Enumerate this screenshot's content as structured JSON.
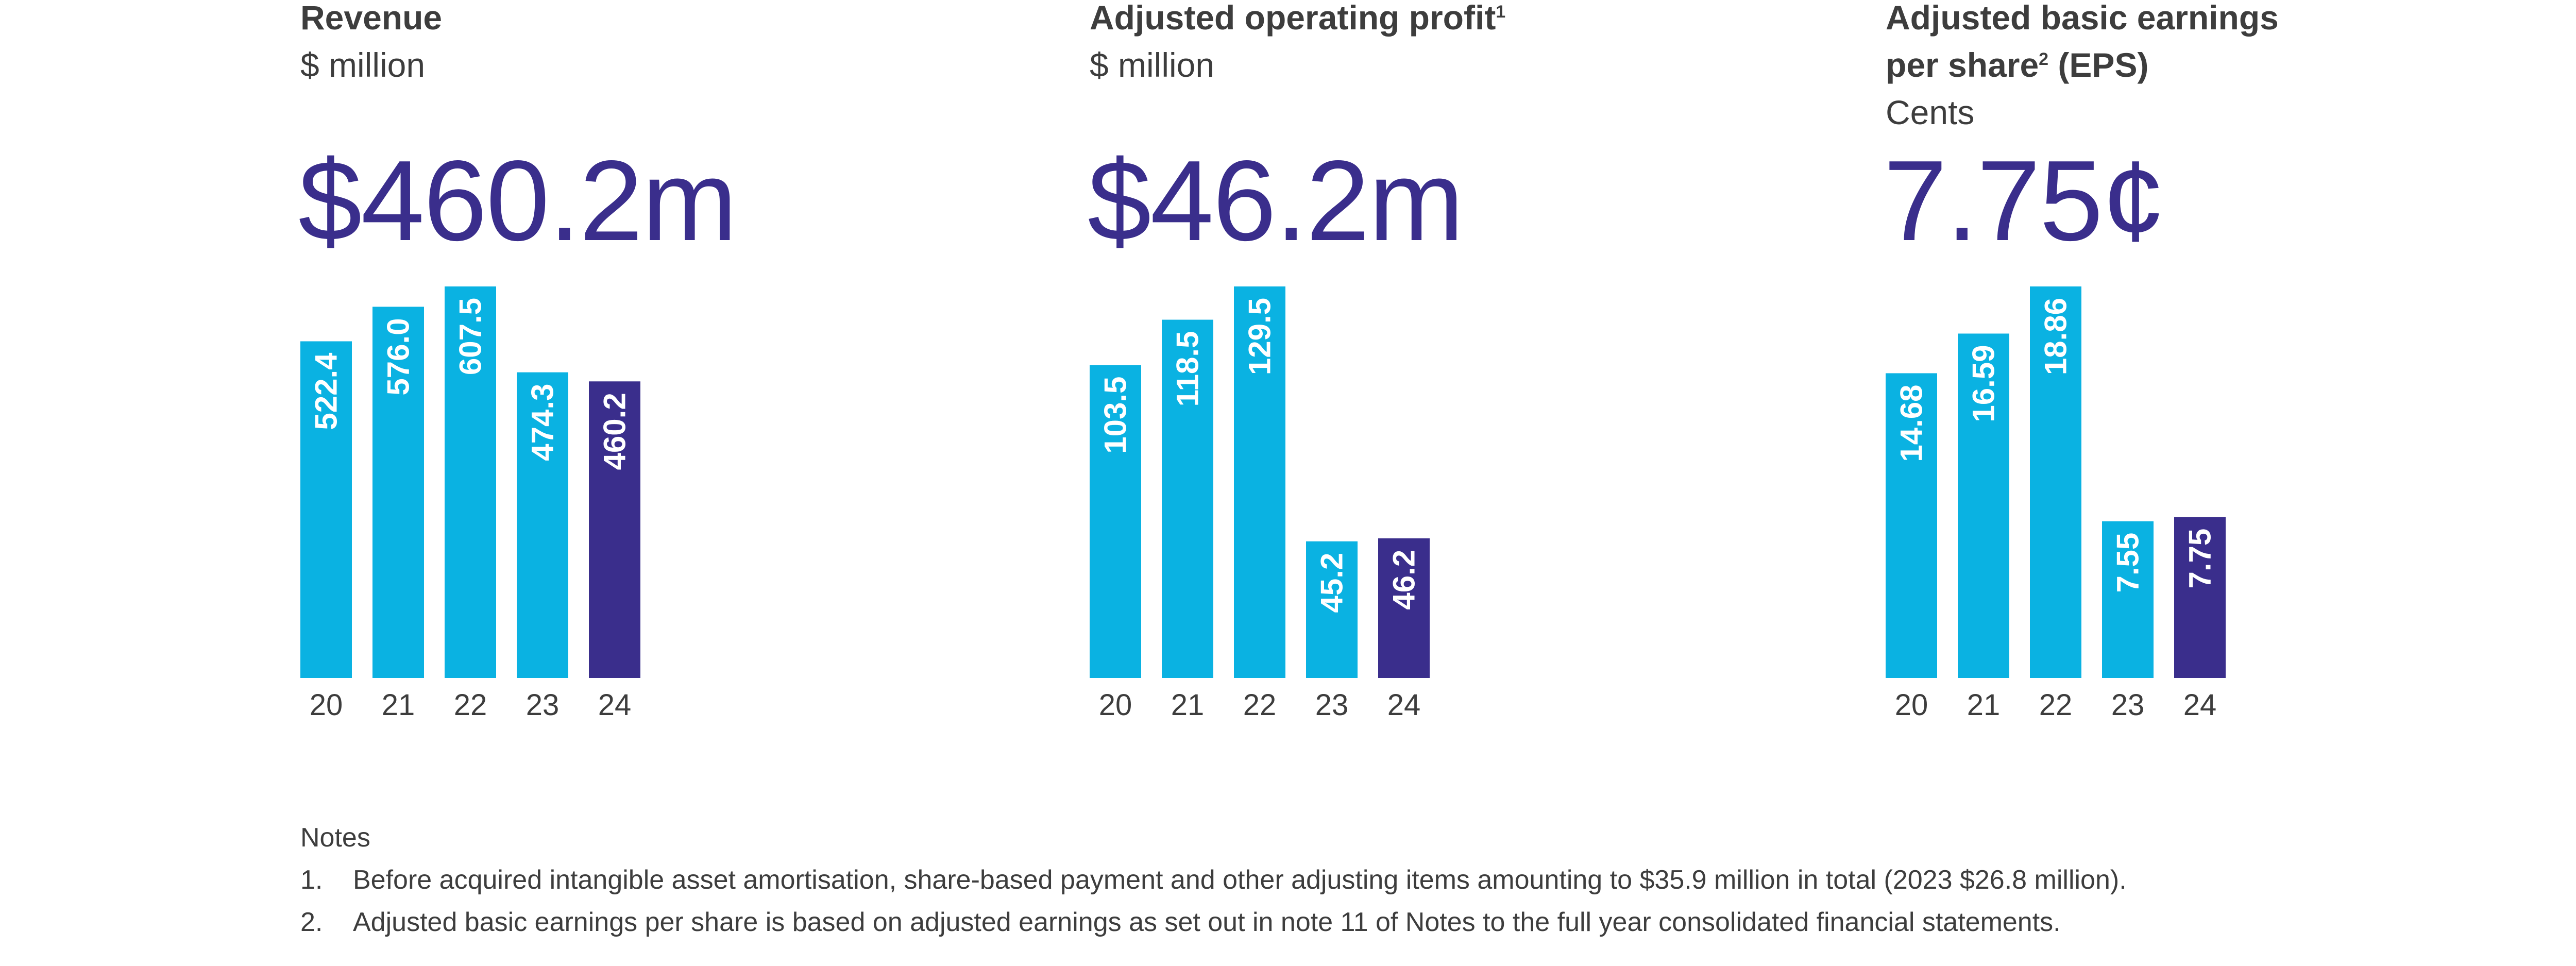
{
  "colors": {
    "bar": "#0ab2e2",
    "highlight_bar": "#3a2e8c",
    "headline": "#3a2e8c",
    "text": "#3d3d3d",
    "bar_label": "#ffffff"
  },
  "panels": [
    {
      "title": "Revenue",
      "title_sup": "",
      "title_line2": "",
      "title_line2_sup": "",
      "title_line2_rest": "",
      "unit": "$ million",
      "headline": "$460.2m"
    },
    {
      "title": "Adjusted operating profit",
      "title_sup": "1",
      "title_line2": "",
      "title_line2_sup": "",
      "title_line2_rest": "",
      "unit": "$ million",
      "headline": "$46.2m"
    },
    {
      "title": "Adjusted basic earnings",
      "title_sup": "",
      "title_line2": "per share",
      "title_line2_sup": "2",
      "title_line2_rest": " (EPS)",
      "unit": "Cents",
      "headline": "7.75¢"
    }
  ],
  "chart_data": [
    {
      "type": "bar",
      "categories": [
        "20",
        "21",
        "22",
        "23",
        "24"
      ],
      "values": [
        522.4,
        576.0,
        607.5,
        474.3,
        460.2
      ],
      "labels": [
        "522.4",
        "576.0",
        "607.5",
        "474.3",
        "460.2"
      ],
      "highlight_index": 4,
      "title": "Revenue",
      "ylabel": "$ million"
    },
    {
      "type": "bar",
      "categories": [
        "20",
        "21",
        "22",
        "23",
        "24"
      ],
      "values": [
        103.5,
        118.5,
        129.5,
        45.2,
        46.2
      ],
      "labels": [
        "103.5",
        "118.5",
        "129.5",
        "45.2",
        "46.2"
      ],
      "highlight_index": 4,
      "title": "Adjusted operating profit",
      "ylabel": "$ million"
    },
    {
      "type": "bar",
      "categories": [
        "20",
        "21",
        "22",
        "23",
        "24"
      ],
      "values": [
        14.68,
        16.59,
        18.86,
        7.55,
        7.75
      ],
      "labels": [
        "14.68",
        "16.59",
        "18.86",
        "7.55",
        "7.75"
      ],
      "highlight_index": 4,
      "title": "Adjusted basic earnings per share (EPS)",
      "ylabel": "Cents"
    }
  ],
  "notes": {
    "heading": "Notes",
    "items": [
      {
        "number": "1.",
        "text": "Before acquired intangible asset amortisation, share-based payment and other adjusting items amounting to $35.9 million in total (2023 $26.8 million)."
      },
      {
        "number": "2.",
        "text": "Adjusted basic earnings per share is based on adjusted earnings as set out in note 11 of Notes to the full year consolidated financial statements."
      }
    ]
  }
}
